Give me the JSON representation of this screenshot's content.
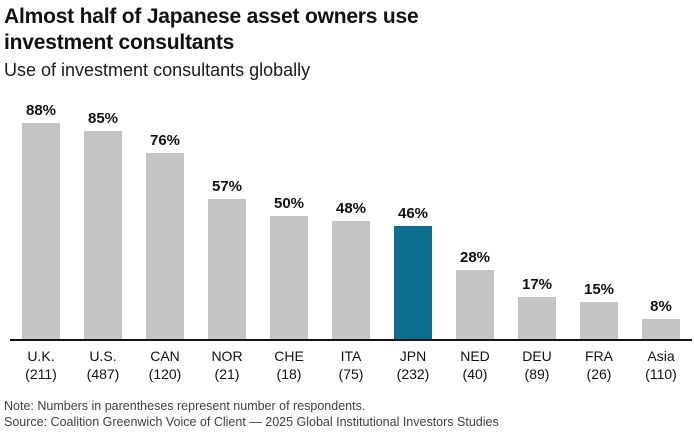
{
  "header": {
    "title_line1": "Almost half of Japanese asset owners use",
    "title_line2": "investment consultants",
    "subtitle": "Use of investment consultants globally"
  },
  "chart_data": {
    "type": "bar",
    "title": "Use of investment consultants globally",
    "categories": [
      "U.K.",
      "U.S.",
      "CAN",
      "NOR",
      "CHE",
      "ITA",
      "JPN",
      "NED",
      "DEU",
      "FRA",
      "Asia"
    ],
    "respondents": [
      211,
      487,
      120,
      21,
      18,
      75,
      232,
      40,
      89,
      26,
      110
    ],
    "values": [
      88,
      85,
      76,
      57,
      50,
      48,
      46,
      28,
      17,
      15,
      8
    ],
    "value_labels": [
      "88%",
      "85%",
      "76%",
      "57%",
      "50%",
      "48%",
      "46%",
      "28%",
      "17%",
      "15%",
      "8%"
    ],
    "highlight_category": "JPN",
    "xlabel": "",
    "ylabel": "",
    "ylim": [
      0,
      100
    ],
    "grid": false,
    "legend": false,
    "bar_color": "#c4c4c4",
    "highlight_color": "#0d6f8e",
    "axis_color": "#141414"
  },
  "footer": {
    "note": "Note: Numbers in parentheses represent number of respondents.",
    "source": "Source: Coalition Greenwich Voice of Client — 2025 Global Institutional Investors Studies"
  }
}
